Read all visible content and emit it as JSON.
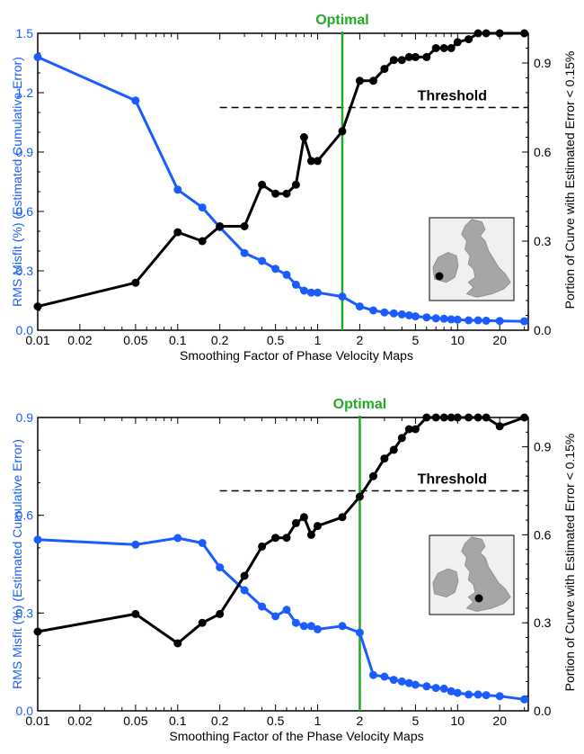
{
  "chart_data": [
    {
      "type": "line",
      "x_scale": "log",
      "xlabel": "Smoothing Factor of Phase Velocity Maps",
      "ylabel_left": "RMS Misfit (%) (Estimated Cumulative Error)",
      "ylabel_right": "Portion of Curve with Estimated Error < 0.15%",
      "x_ticks": [
        "0.01",
        "0.02",
        "0.05",
        "0.1",
        "0.2",
        "0.5",
        "1",
        "2",
        "5",
        "10",
        "20"
      ],
      "y_left_ticks": [
        "0.0",
        "0.3",
        "0.6",
        "0.9",
        "1.2",
        "1.5"
      ],
      "y_right_ticks": [
        "0.0",
        "0.3",
        "0.6",
        "0.9"
      ],
      "xlim": [
        0.01,
        32
      ],
      "ylim_left": [
        0,
        1.5
      ],
      "ylim_right": [
        0,
        1.0
      ],
      "optimal": {
        "label": "Optimal",
        "x": 1.5
      },
      "threshold": {
        "label": "Threshold",
        "y": 0.75,
        "x_start": 0.2
      },
      "inset_marker": "map-inset-west",
      "series": [
        {
          "axis": "left",
          "color": "#1a5cff",
          "x": [
            0.01,
            0.05,
            0.1,
            0.15,
            0.2,
            0.3,
            0.4,
            0.5,
            0.6,
            0.7,
            0.8,
            0.9,
            1.0,
            1.5,
            2.0,
            2.5,
            3.0,
            3.5,
            4.0,
            4.5,
            5.0,
            6.0,
            7.0,
            8.0,
            9.0,
            10.0,
            12.0,
            14.0,
            16.0,
            20.0,
            30.0
          ],
          "values": [
            1.38,
            1.16,
            0.71,
            0.62,
            0.52,
            0.39,
            0.35,
            0.31,
            0.28,
            0.23,
            0.2,
            0.19,
            0.19,
            0.17,
            0.12,
            0.1,
            0.09,
            0.085,
            0.08,
            0.075,
            0.07,
            0.065,
            0.06,
            0.058,
            0.055,
            0.053,
            0.05,
            0.05,
            0.048,
            0.047,
            0.045
          ]
        },
        {
          "axis": "right",
          "color": "#000000",
          "x": [
            0.01,
            0.05,
            0.1,
            0.15,
            0.2,
            0.3,
            0.4,
            0.5,
            0.6,
            0.7,
            0.8,
            0.9,
            1.0,
            1.5,
            2.0,
            2.5,
            3.0,
            3.5,
            4.0,
            4.5,
            5.0,
            6.0,
            7.0,
            8.0,
            9.0,
            10.0,
            12.0,
            14.0,
            16.0,
            20.0,
            30.0
          ],
          "values": [
            0.08,
            0.16,
            0.33,
            0.3,
            0.35,
            0.35,
            0.49,
            0.46,
            0.46,
            0.49,
            0.65,
            0.57,
            0.57,
            0.67,
            0.84,
            0.84,
            0.88,
            0.91,
            0.91,
            0.92,
            0.92,
            0.92,
            0.95,
            0.95,
            0.95,
            0.97,
            0.98,
            1.0,
            1.0,
            1.0,
            1.0
          ]
        }
      ]
    },
    {
      "type": "line",
      "x_scale": "log",
      "xlabel": "Smoothing Factor of the Phase Velocity Maps",
      "ylabel_left": "RMS Misfit (%) (Estimated Cumulative Error)",
      "ylabel_right": "Portion of Curve with Estimated Error < 0.15%",
      "x_ticks": [
        "0.01",
        "0.02",
        "0.05",
        "0.1",
        "0.2",
        "0.5",
        "1",
        "2",
        "5",
        "10",
        "20"
      ],
      "y_left_ticks": [
        "0.0",
        "0.3",
        "0.6",
        "0.9"
      ],
      "y_right_ticks": [
        "0.0",
        "0.3",
        "0.6",
        "0.9"
      ],
      "xlim": [
        0.01,
        32
      ],
      "ylim_left": [
        0,
        0.9
      ],
      "ylim_right": [
        0,
        1.0
      ],
      "optimal": {
        "label": "Optimal",
        "x": 2.0
      },
      "threshold": {
        "label": "Threshold",
        "y": 0.75,
        "x_start": 0.2
      },
      "inset_marker": "map-inset-east",
      "series": [
        {
          "axis": "left",
          "color": "#1a5cff",
          "x": [
            0.01,
            0.05,
            0.1,
            0.15,
            0.2,
            0.3,
            0.4,
            0.5,
            0.6,
            0.7,
            0.8,
            0.9,
            1.0,
            1.5,
            2.0,
            2.5,
            3.0,
            3.5,
            4.0,
            4.5,
            5.0,
            6.0,
            7.0,
            8.0,
            9.0,
            10.0,
            12.0,
            14.0,
            16.0,
            20.0,
            30.0
          ],
          "values": [
            0.525,
            0.51,
            0.53,
            0.515,
            0.44,
            0.37,
            0.32,
            0.29,
            0.31,
            0.27,
            0.26,
            0.26,
            0.25,
            0.26,
            0.24,
            0.11,
            0.105,
            0.095,
            0.09,
            0.085,
            0.08,
            0.075,
            0.07,
            0.068,
            0.06,
            0.055,
            0.05,
            0.05,
            0.048,
            0.045,
            0.035
          ]
        },
        {
          "axis": "right",
          "color": "#000000",
          "x": [
            0.01,
            0.05,
            0.1,
            0.15,
            0.2,
            0.3,
            0.4,
            0.5,
            0.6,
            0.7,
            0.8,
            0.9,
            1.0,
            1.5,
            2.0,
            2.5,
            3.0,
            3.5,
            4.0,
            4.5,
            5.0,
            6.0,
            7.0,
            8.0,
            9.0,
            10.0,
            12.0,
            14.0,
            16.0,
            20.0,
            30.0
          ],
          "values": [
            0.27,
            0.33,
            0.23,
            0.3,
            0.33,
            0.46,
            0.56,
            0.59,
            0.59,
            0.64,
            0.66,
            0.6,
            0.63,
            0.66,
            0.73,
            0.8,
            0.86,
            0.89,
            0.93,
            0.96,
            0.96,
            1.0,
            1.0,
            1.0,
            1.0,
            1.0,
            1.0,
            1.0,
            1.0,
            0.97,
            1.0
          ]
        }
      ]
    }
  ],
  "colors": {
    "misfit": "#1a5cff",
    "portion": "#000000",
    "optimal": "#22aa22",
    "threshold": "#000000",
    "map_land": "#a6a6a6",
    "map_sea": "#f0f0f0"
  }
}
